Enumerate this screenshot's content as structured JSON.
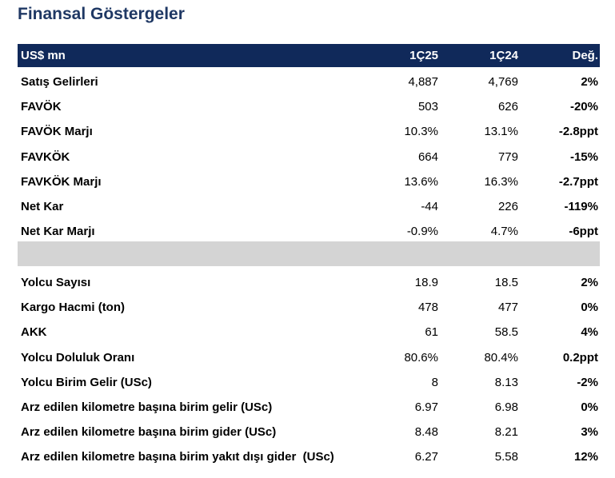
{
  "title": "Finansal Göstergeler",
  "table": {
    "header": [
      "US$ mn",
      "1Ç25",
      "1Ç24",
      "Değ."
    ],
    "sections": [
      {
        "rows": [
          [
            "Satış Gelirleri",
            "4,887",
            "4,769",
            "2%"
          ],
          [
            "FAVÖK",
            "503",
            "626",
            "-20%"
          ],
          [
            "FAVÖK Marjı",
            "10.3%",
            "13.1%",
            "-2.8ppt"
          ],
          [
            "FAVKÖK",
            "664",
            "779",
            "-15%"
          ],
          [
            "FAVKÖK Marjı",
            "13.6%",
            "16.3%",
            "-2.7ppt"
          ],
          [
            "Net Kar",
            "-44",
            "226",
            "-119%"
          ],
          [
            "Net Kar Marjı",
            "-0.9%",
            "4.7%",
            "-6ppt"
          ]
        ]
      },
      {
        "rows": [
          [
            "Yolcu Sayısı",
            "18.9",
            "18.5",
            "2%"
          ],
          [
            "Kargo Hacmi (ton)",
            "478",
            "477",
            "0%"
          ],
          [
            "AKK",
            "61",
            "58.5",
            "4%"
          ],
          [
            "Yolcu Doluluk Oranı",
            "80.6%",
            "80.4%",
            "0.2ppt"
          ],
          [
            "Yolcu Birim Gelir (USc)",
            "8",
            "8.13",
            "-2%"
          ],
          [
            "Arz edilen kilometre başına birim gelir (USc)",
            "6.97",
            "6.98",
            "0%"
          ],
          [
            "Arz edilen kilometre başına birim gider (USc)",
            "8.48",
            "8.21",
            "3%"
          ],
          [
            "Arz edilen kilometre başına birim yakıt dışı gider  (USc)",
            "6.27",
            "5.58",
            "12%"
          ]
        ]
      }
    ]
  }
}
